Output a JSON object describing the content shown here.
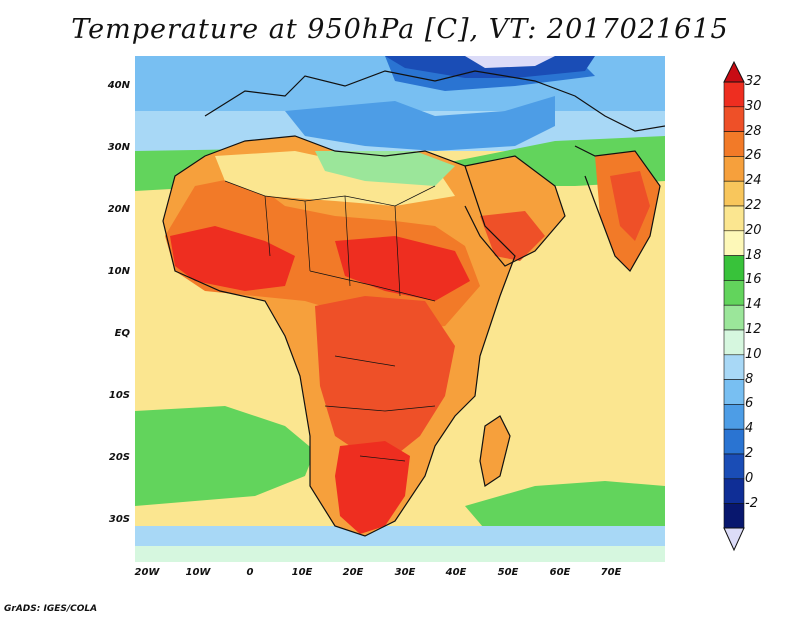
{
  "title": "Temperature at 950hPa [C], VT: 2017021615",
  "credit": "GrADS: IGES/COLA",
  "lat_labels": [
    "40N",
    "30N",
    "20N",
    "10N",
    "EQ",
    "10S",
    "20S",
    "30S"
  ],
  "lat_values": [
    40,
    30,
    20,
    10,
    0,
    -10,
    -20,
    -30
  ],
  "lon_labels": [
    "20W",
    "10W",
    "0",
    "10E",
    "20E",
    "30E",
    "40E",
    "50E",
    "60E",
    "70E"
  ],
  "lon_values": [
    -20,
    -10,
    0,
    10,
    20,
    30,
    40,
    50,
    60,
    70
  ],
  "extent": {
    "lon_min": -22,
    "lon_max": 80,
    "lat_min": -37,
    "lat_max": 45
  },
  "colorbar": {
    "labels": [
      "32",
      "30",
      "28",
      "26",
      "24",
      "22",
      "20",
      "18",
      "16",
      "14",
      "12",
      "10",
      "8",
      "6",
      "4",
      "2",
      "0",
      "-2"
    ],
    "colors": [
      "#ee2e20",
      "#ee5028",
      "#f27a28",
      "#f6a03c",
      "#f8c65c",
      "#fbe690",
      "#fdf8b8",
      "#38c23a",
      "#62d45c",
      "#9be69a",
      "#d6f7df",
      "#a8d8f6",
      "#78bff2",
      "#4d9de6",
      "#2a74d2",
      "#1a4db6",
      "#0f2e96",
      "#08176e"
    ],
    "top_arrow_color": "#c80c14",
    "bottom_arrow_color": "#dcdcf8"
  }
}
